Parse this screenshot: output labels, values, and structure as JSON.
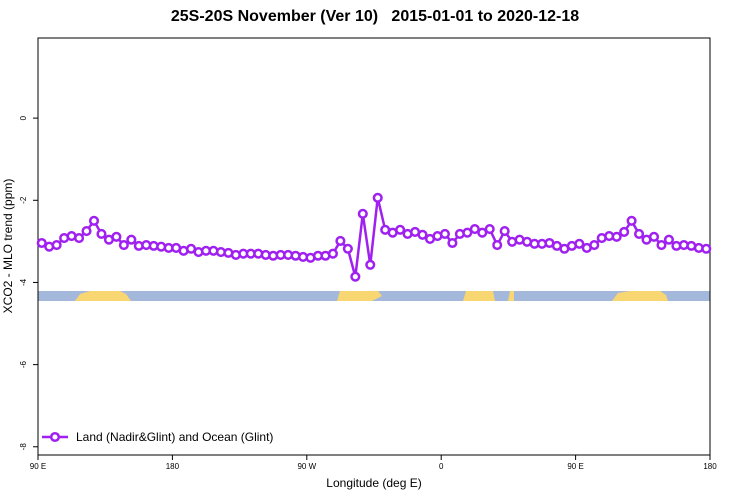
{
  "chart_data": {
    "type": "line",
    "title": "25S-20S November (Ver 10)   2015-01-01 to 2020-12-18",
    "x_label": "Longitude (deg E)",
    "y_label": "XCO2 - MLO trend (ppm)",
    "x": [
      92.5,
      97.5,
      102.5,
      107.5,
      112.5,
      117.5,
      122.5,
      127.5,
      132.5,
      137.5,
      142.5,
      147.5,
      152.5,
      157.5,
      162.5,
      167.5,
      172.5,
      177.5,
      182.5,
      187.5,
      192.5,
      197.5,
      202.5,
      207.5,
      212.5,
      217.5,
      222.5,
      227.5,
      232.5,
      237.5,
      242.5,
      247.5,
      252.5,
      257.5,
      262.5,
      267.5,
      272.5,
      277.5,
      282.5,
      287.5,
      292.5,
      297.5,
      302.5,
      307.5,
      312.5,
      317.5,
      322.5,
      327.5,
      332.5,
      337.5,
      342.5,
      347.5,
      352.5,
      357.5,
      362.5,
      367.5,
      372.5,
      377.5,
      382.5,
      387.5,
      392.5,
      397.5,
      402.5,
      407.5,
      412.5,
      417.5,
      422.5,
      427.5,
      432.5,
      437.5,
      442.5,
      447.5,
      452.5,
      457.5,
      462.5,
      467.5,
      472.5,
      477.5,
      482.5,
      487.5,
      492.5,
      497.5,
      502.5,
      507.5,
      512.5,
      517.5,
      522.5,
      527.5,
      532.5,
      537.5
    ],
    "series": [
      {
        "name": "Land (Nadir&Glint) and Ocean (Glint)",
        "color": "#a020f0",
        "values": [
          -3.04,
          -3.13,
          -3.09,
          -2.92,
          -2.87,
          -2.92,
          -2.75,
          -2.5,
          -2.82,
          -2.96,
          -2.89,
          -3.09,
          -2.96,
          -3.11,
          -3.09,
          -3.11,
          -3.13,
          -3.16,
          -3.16,
          -3.23,
          -3.18,
          -3.26,
          -3.23,
          -3.23,
          -3.26,
          -3.28,
          -3.33,
          -3.3,
          -3.3,
          -3.3,
          -3.33,
          -3.35,
          -3.33,
          -3.33,
          -3.35,
          -3.38,
          -3.4,
          -3.35,
          -3.35,
          -3.3,
          -2.99,
          -3.18,
          -3.86,
          -2.33,
          -3.57,
          -1.94,
          -2.72,
          -2.79,
          -2.72,
          -2.82,
          -2.77,
          -2.84,
          -2.94,
          -2.87,
          -2.82,
          -3.04,
          -2.82,
          -2.79,
          -2.7,
          -2.79,
          -2.7,
          -3.09,
          -2.75,
          -3.01,
          -2.96,
          -3.01,
          -3.06,
          -3.06,
          -3.04,
          -3.11,
          -3.18,
          -3.11,
          -3.06,
          -3.16,
          -3.09,
          -2.92,
          -2.87,
          -2.89,
          -2.77,
          -2.5,
          -2.82,
          -2.96,
          -2.89,
          -3.09,
          -2.96,
          -3.11,
          -3.09,
          -3.11,
          -3.16,
          -3.18
        ]
      }
    ],
    "xlim": [
      90,
      540
    ],
    "xticks": [
      {
        "value": 90,
        "label": "90 E"
      },
      {
        "value": 180,
        "label": "180"
      },
      {
        "value": 270,
        "label": "90 W"
      },
      {
        "value": 360,
        "label": "0"
      },
      {
        "value": 450,
        "label": "90 E"
      },
      {
        "value": 540,
        "label": "180"
      }
    ],
    "ylim": [
      -8.2,
      1.95
    ],
    "yticks": [
      0,
      -2,
      -4,
      -6,
      -8
    ],
    "legend": "bottom-left"
  }
}
